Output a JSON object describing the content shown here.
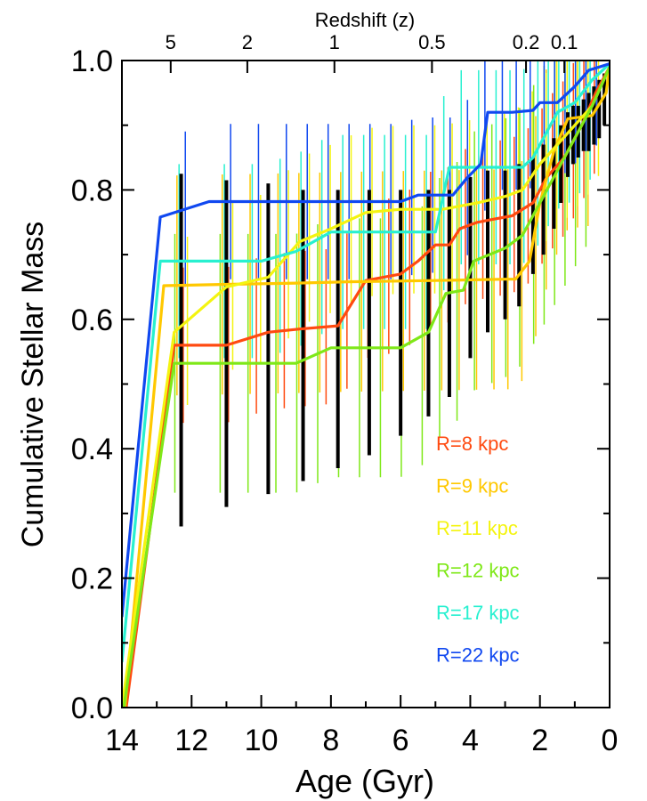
{
  "chart_data": {
    "type": "line",
    "xlabel": "Age (Gyr)",
    "ylabel": "Cumulative Stellar Mass",
    "top_axis_label": "Redshift (z)",
    "xlim": [
      14,
      0
    ],
    "ylim": [
      0.0,
      1.0
    ],
    "x_ticks": [
      14,
      12,
      10,
      8,
      6,
      4,
      2,
      0
    ],
    "x_tick_labels": [
      "14",
      "12",
      "10",
      "8",
      "6",
      "4",
      "2",
      "0"
    ],
    "y_ticks": [
      0.0,
      0.2,
      0.4,
      0.6,
      0.8,
      1.0
    ],
    "y_tick_labels": [
      "0.0",
      "0.2",
      "0.4",
      "0.6",
      "0.8",
      "1.0"
    ],
    "top_ticks": [
      {
        "label": "5",
        "age": 12.6
      },
      {
        "label": "2",
        "age": 10.4
      },
      {
        "label": "1",
        "age": 7.9
      },
      {
        "label": "0.5",
        "age": 5.1
      },
      {
        "label": "0.2",
        "age": 2.4
      },
      {
        "label": "0.1",
        "age": 1.3
      }
    ],
    "grid": false,
    "legend_position": "lower-right",
    "series": [
      {
        "name": "R=8 kpc",
        "color": "#ff4a10",
        "points": [
          [
            14.0,
            -0.05
          ],
          [
            12.5,
            0.56
          ],
          [
            11.0,
            0.56
          ],
          [
            9.8,
            0.58
          ],
          [
            8.9,
            0.585
          ],
          [
            7.8,
            0.59
          ],
          [
            7.0,
            0.66
          ],
          [
            6.0,
            0.67
          ],
          [
            5.5,
            0.69
          ],
          [
            5.0,
            0.715
          ],
          [
            4.6,
            0.715
          ],
          [
            4.3,
            0.74
          ],
          [
            3.8,
            0.75
          ],
          [
            3.3,
            0.755
          ],
          [
            2.8,
            0.76
          ],
          [
            2.2,
            0.78
          ],
          [
            1.8,
            0.82
          ],
          [
            1.3,
            0.85
          ],
          [
            0.8,
            0.9
          ],
          [
            0.4,
            0.95
          ],
          [
            0.0,
            0.99
          ]
        ],
        "err_low": 0.12,
        "err_high": 0.12
      },
      {
        "name": "R=9 kpc",
        "color": "#ffc800",
        "points": [
          [
            14.0,
            -0.05
          ],
          [
            12.8,
            0.652
          ],
          [
            11.0,
            0.654
          ],
          [
            9.0,
            0.656
          ],
          [
            7.5,
            0.658
          ],
          [
            5.0,
            0.66
          ],
          [
            3.0,
            0.662
          ],
          [
            2.7,
            0.662
          ],
          [
            2.3,
            0.69
          ],
          [
            2.0,
            0.78
          ],
          [
            1.6,
            0.86
          ],
          [
            1.2,
            0.91
          ],
          [
            0.5,
            0.915
          ],
          [
            0.1,
            0.95
          ],
          [
            0.0,
            0.99
          ]
        ],
        "err_low": 0.17,
        "err_high": 0.17
      },
      {
        "name": "R=11 kpc",
        "color": "#f4f410",
        "points": [
          [
            14.0,
            0.0
          ],
          [
            12.5,
            0.58
          ],
          [
            11.0,
            0.65
          ],
          [
            9.8,
            0.665
          ],
          [
            8.9,
            0.72
          ],
          [
            8.0,
            0.74
          ],
          [
            7.0,
            0.765
          ],
          [
            6.0,
            0.77
          ],
          [
            4.8,
            0.77
          ],
          [
            4.3,
            0.775
          ],
          [
            3.8,
            0.78
          ],
          [
            3.0,
            0.79
          ],
          [
            2.5,
            0.8
          ],
          [
            2.0,
            0.84
          ],
          [
            1.5,
            0.87
          ],
          [
            1.0,
            0.9
          ],
          [
            0.5,
            0.93
          ],
          [
            0.0,
            0.99
          ]
        ],
        "err_low": 0.13,
        "err_high": 0.13
      },
      {
        "name": "R=12 kpc",
        "color": "#7fe818",
        "points": [
          [
            14.0,
            -0.02
          ],
          [
            12.5,
            0.532
          ],
          [
            11.0,
            0.532
          ],
          [
            9.0,
            0.532
          ],
          [
            8.0,
            0.556
          ],
          [
            6.0,
            0.556
          ],
          [
            5.2,
            0.58
          ],
          [
            4.7,
            0.64
          ],
          [
            4.2,
            0.645
          ],
          [
            3.9,
            0.69
          ],
          [
            3.0,
            0.71
          ],
          [
            2.5,
            0.73
          ],
          [
            2.0,
            0.78
          ],
          [
            1.5,
            0.83
          ],
          [
            1.0,
            0.88
          ],
          [
            0.5,
            0.93
          ],
          [
            0.0,
            0.99
          ]
        ],
        "err_low": 0.2,
        "err_high": 0.2
      },
      {
        "name": "R=17 kpc",
        "color": "#28f0d0",
        "points": [
          [
            14.0,
            0.07
          ],
          [
            12.9,
            0.69
          ],
          [
            11.0,
            0.69
          ],
          [
            10.0,
            0.69
          ],
          [
            9.0,
            0.705
          ],
          [
            8.0,
            0.735
          ],
          [
            7.0,
            0.735
          ],
          [
            5.0,
            0.735
          ],
          [
            4.6,
            0.835
          ],
          [
            3.5,
            0.835
          ],
          [
            2.5,
            0.835
          ],
          [
            2.2,
            0.85
          ],
          [
            2.0,
            0.87
          ],
          [
            1.5,
            0.92
          ],
          [
            1.0,
            0.935
          ],
          [
            0.5,
            0.97
          ],
          [
            0.0,
            0.995
          ]
        ],
        "err_low": 0.15,
        "err_high": 0.15
      },
      {
        "name": "R=22 kpc",
        "color": "#1048f0",
        "points": [
          [
            14.0,
            0.14
          ],
          [
            12.9,
            0.758
          ],
          [
            11.5,
            0.782
          ],
          [
            8.0,
            0.782
          ],
          [
            6.0,
            0.782
          ],
          [
            5.5,
            0.792
          ],
          [
            4.5,
            0.792
          ],
          [
            4.1,
            0.818
          ],
          [
            3.7,
            0.84
          ],
          [
            3.5,
            0.92
          ],
          [
            2.8,
            0.92
          ],
          [
            2.2,
            0.923
          ],
          [
            2.0,
            0.935
          ],
          [
            1.5,
            0.935
          ],
          [
            1.0,
            0.96
          ],
          [
            0.6,
            0.985
          ],
          [
            0.3,
            0.99
          ],
          [
            0.0,
            0.995
          ]
        ],
        "err_low": 0.12,
        "err_high": 0.12
      }
    ],
    "black_errorbars": {
      "color": "#000000",
      "x": [
        12.3,
        11.0,
        9.8,
        8.8,
        7.8,
        6.9,
        6.0,
        5.2,
        4.6,
        4.0,
        3.5,
        3.0,
        2.6,
        2.2,
        1.9,
        1.6,
        1.4,
        1.2,
        1.05,
        0.9,
        0.75,
        0.6,
        0.45,
        0.3,
        0.15
      ],
      "low": [
        0.28,
        0.31,
        0.33,
        0.35,
        0.37,
        0.39,
        0.42,
        0.45,
        0.48,
        0.54,
        0.58,
        0.6,
        0.62,
        0.67,
        0.7,
        0.74,
        0.78,
        0.82,
        0.84,
        0.85,
        0.86,
        0.86,
        0.87,
        0.88,
        0.9
      ],
      "high": [
        0.825,
        0.815,
        0.81,
        0.8,
        0.8,
        0.8,
        0.8,
        0.8,
        0.8,
        0.82,
        0.83,
        0.83,
        0.84,
        0.85,
        0.87,
        0.88,
        0.9,
        0.92,
        0.93,
        0.93,
        0.94,
        0.95,
        0.96,
        0.97,
        0.98
      ]
    }
  }
}
